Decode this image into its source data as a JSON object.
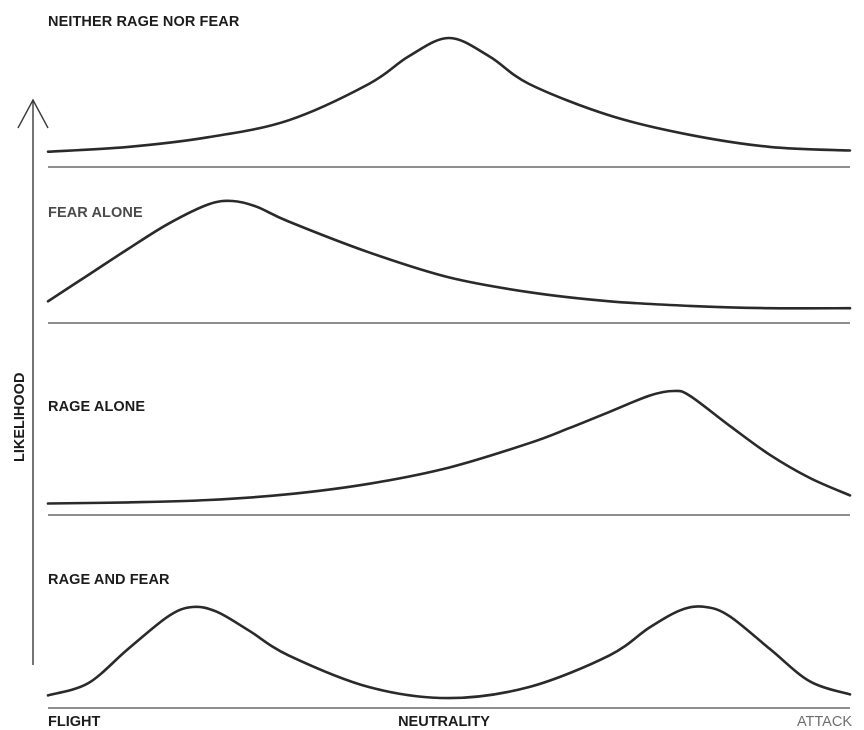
{
  "chart_data": {
    "type": "line",
    "title": "",
    "ylabel": "LIKELIHOOD",
    "x_axis": {
      "labels": [
        "FLIGHT",
        "NEUTRALITY",
        "ATTACK"
      ],
      "range": [
        0,
        1
      ]
    },
    "panels": [
      {
        "label": "NEITHER RAGE NOR FEAR",
        "x": [
          0.0,
          0.1,
          0.2,
          0.3,
          0.4,
          0.45,
          0.5,
          0.55,
          0.6,
          0.7,
          0.8,
          0.9,
          1.0
        ],
        "values": [
          0.06,
          0.1,
          0.18,
          0.32,
          0.62,
          0.85,
          1.0,
          0.85,
          0.62,
          0.36,
          0.2,
          0.1,
          0.07
        ]
      },
      {
        "label": "FEAR ALONE",
        "x": [
          0.0,
          0.05,
          0.1,
          0.15,
          0.2,
          0.23,
          0.26,
          0.3,
          0.4,
          0.5,
          0.6,
          0.7,
          0.8,
          0.9,
          1.0
        ],
        "values": [
          0.12,
          0.35,
          0.58,
          0.8,
          0.97,
          1.0,
          0.95,
          0.82,
          0.55,
          0.33,
          0.2,
          0.12,
          0.08,
          0.06,
          0.06
        ]
      },
      {
        "label": "RAGE ALONE",
        "x": [
          0.0,
          0.1,
          0.2,
          0.3,
          0.4,
          0.5,
          0.6,
          0.65,
          0.7,
          0.75,
          0.78,
          0.8,
          0.85,
          0.9,
          0.95,
          1.0
        ],
        "values": [
          0.03,
          0.04,
          0.06,
          0.11,
          0.2,
          0.34,
          0.55,
          0.68,
          0.82,
          0.96,
          1.0,
          0.96,
          0.7,
          0.45,
          0.25,
          0.1
        ]
      },
      {
        "label": "RAGE AND FEAR",
        "x": [
          0.0,
          0.05,
          0.1,
          0.15,
          0.18,
          0.21,
          0.25,
          0.3,
          0.4,
          0.5,
          0.6,
          0.7,
          0.75,
          0.79,
          0.82,
          0.85,
          0.9,
          0.95,
          1.0
        ],
        "values": [
          0.05,
          0.18,
          0.55,
          0.9,
          1.0,
          0.95,
          0.75,
          0.48,
          0.14,
          0.02,
          0.14,
          0.48,
          0.78,
          0.97,
          1.0,
          0.9,
          0.55,
          0.2,
          0.06
        ]
      }
    ],
    "grid": false,
    "legend": "none"
  }
}
